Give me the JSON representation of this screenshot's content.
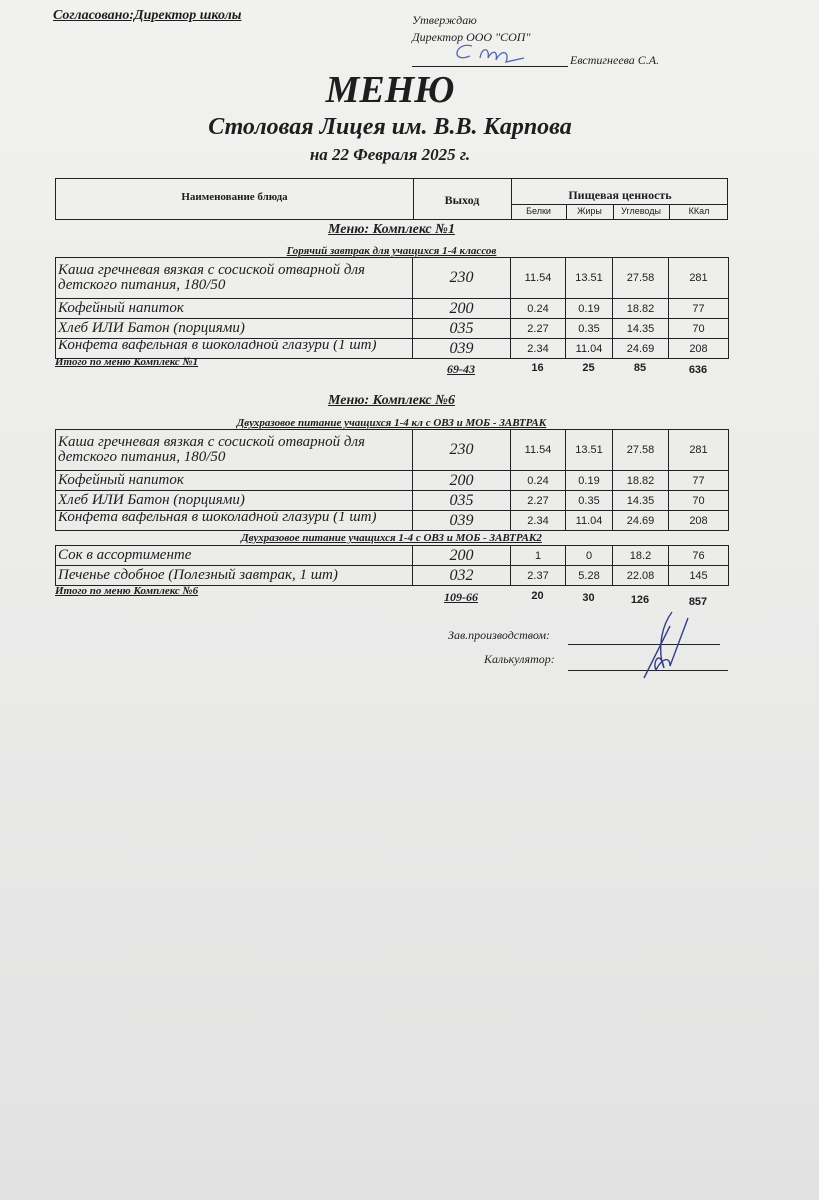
{
  "header": {
    "agreed": "Согласовано:Директор школы",
    "approve": "Утверждаю",
    "approve_position": "Директор ООО \"СОП\"",
    "approve_name": "Евстигнеева С.А.",
    "title": "МЕНЮ",
    "subtitle": "Столовая Лицея им. В.В. Карпова",
    "date": "на 22 Февраля 2025 г."
  },
  "columns": {
    "name": "Наименование блюда",
    "output": "Выход",
    "nutrition": "Пищевая ценность",
    "protein": "Белки",
    "fat": "Жиры",
    "carbs": "Углеводы",
    "kcal": "ККал"
  },
  "complex1": {
    "title": "Меню: Комплекс №1",
    "section": "Горячий завтрак для учащихся 1-4 классов",
    "rows": [
      {
        "name": "Каша гречневая вязкая с сосиской отварной для",
        "name2": "детского питания, 180/50",
        "output": "230",
        "protein": "11.54",
        "fat": "13.51",
        "carbs": "27.58",
        "kcal": "281"
      },
      {
        "name": "Кофейный напиток",
        "output": "200",
        "protein": "0.24",
        "fat": "0.19",
        "carbs": "18.82",
        "kcal": "77"
      },
      {
        "name": "Хлеб ИЛИ Батон (порциями)",
        "output": "035",
        "protein": "2.27",
        "fat": "0.35",
        "carbs": "14.35",
        "kcal": "70"
      },
      {
        "name": "Конфета вафельная в шоколадной глазури (1 шт)",
        "output": "039",
        "protein": "2.34",
        "fat": "11.04",
        "carbs": "24.69",
        "kcal": "208"
      }
    ],
    "total": {
      "label": "Итого по меню Комплекс №1",
      "output": "69-43",
      "protein": "16",
      "fat": "25",
      "carbs": "85",
      "kcal": "636"
    }
  },
  "complex6": {
    "title": "Меню: Комплекс №6",
    "section": "Двухразовое питание учащихся 1-4 кл с ОВЗ и МОБ - ЗАВТРАК",
    "rows": [
      {
        "name": "Каша гречневая вязкая с сосиской отварной для",
        "name2": "детского питания, 180/50",
        "output": "230",
        "protein": "11.54",
        "fat": "13.51",
        "carbs": "27.58",
        "kcal": "281"
      },
      {
        "name": "Кофейный напиток",
        "output": "200",
        "protein": "0.24",
        "fat": "0.19",
        "carbs": "18.82",
        "kcal": "77"
      },
      {
        "name": "Хлеб ИЛИ Батон (порциями)",
        "output": "035",
        "protein": "2.27",
        "fat": "0.35",
        "carbs": "14.35",
        "kcal": "70"
      },
      {
        "name": "Конфета вафельная в шоколадной глазури (1 шт)",
        "output": "039",
        "protein": "2.34",
        "fat": "11.04",
        "carbs": "24.69",
        "kcal": "208"
      }
    ],
    "section2": "Двухразовое питание учащихся 1-4 с ОВЗ и МОБ - ЗАВТРАК2",
    "rows2": [
      {
        "name": "Сок в ассортименте",
        "output": "200",
        "protein": "1",
        "fat": "0",
        "carbs": "18.2",
        "kcal": "76"
      },
      {
        "name": "Печенье сдобное (Полезный завтрак, 1 шт)",
        "output": "032",
        "protein": "2.37",
        "fat": "5.28",
        "carbs": "22.08",
        "kcal": "145"
      }
    ],
    "total": {
      "label": "Итого по меню Комплекс №6",
      "output": "109-66",
      "protein": "20",
      "fat": "30",
      "carbs": "126",
      "kcal": "857"
    }
  },
  "signatures": {
    "production": "Зав.производством:",
    "calculator": "Калькулятор:"
  }
}
